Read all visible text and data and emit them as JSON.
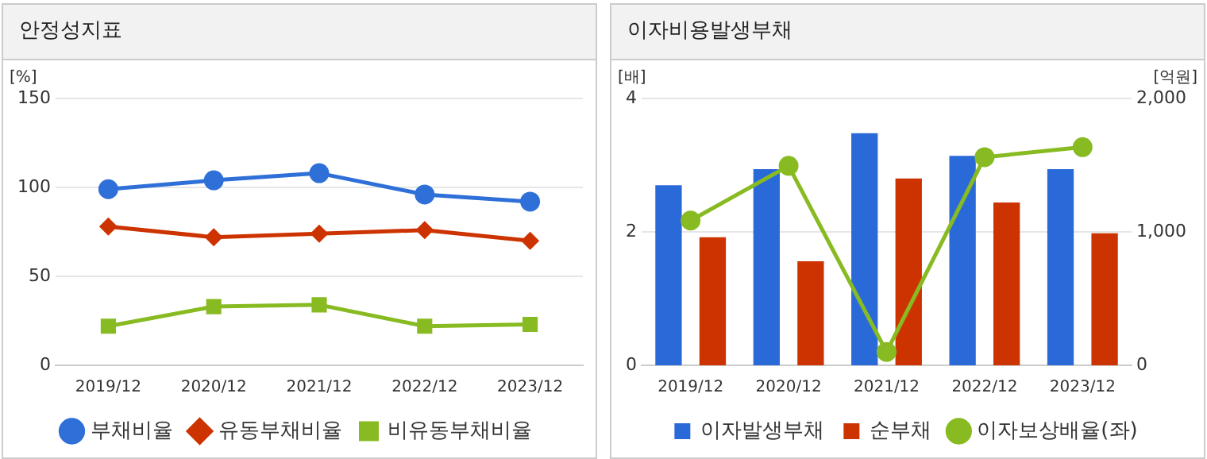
{
  "chart_data": [
    {
      "type": "line",
      "title": "안정성지표",
      "ylabel": "[%]",
      "categories": [
        "2019/12",
        "2020/12",
        "2021/12",
        "2022/12",
        "2023/12"
      ],
      "series": [
        {
          "name": "부채비율",
          "color": "#2f6fd8",
          "marker": "circle",
          "values": [
            99,
            104,
            108,
            96,
            92
          ]
        },
        {
          "name": "유동부채비율",
          "color": "#cc3300",
          "marker": "diamond",
          "values": [
            78,
            72,
            74,
            76,
            70
          ]
        },
        {
          "name": "비유동부채비율",
          "color": "#88bb22",
          "marker": "square",
          "values": [
            22,
            33,
            34,
            22,
            23
          ]
        }
      ],
      "ylim": [
        0,
        150
      ],
      "yticks": [
        0,
        50,
        100,
        150
      ],
      "grid": "y",
      "legend": "bottom"
    },
    {
      "type": "bar",
      "title": "이자비용발생부채",
      "ylabel": "[배]",
      "y2label": "[억원]",
      "categories": [
        "2019/12",
        "2020/12",
        "2021/12",
        "2022/12",
        "2023/12"
      ],
      "series": [
        {
          "name": "이자발생부채",
          "color": "#2a6ad8",
          "axis": "y2",
          "values": [
            1350,
            1470,
            1740,
            1570,
            1470
          ]
        },
        {
          "name": "순부채",
          "color": "#cc3300",
          "axis": "y2",
          "values": [
            960,
            780,
            1400,
            1220,
            990
          ]
        },
        {
          "name": "이자보상배율(좌)",
          "type": "line",
          "color": "#88bb22",
          "marker": "circle",
          "axis": "y",
          "values": [
            2.17,
            2.99,
            0.2,
            3.12,
            3.27
          ]
        }
      ],
      "ylim": [
        0,
        4
      ],
      "yticks": [
        0,
        2,
        4
      ],
      "y2lim": [
        0,
        2000
      ],
      "y2ticks": [
        {
          "value": 0,
          "label": "0"
        },
        {
          "value": 1000,
          "label": "1,000"
        },
        {
          "value": 2000,
          "label": "2,000"
        }
      ],
      "grid": "y",
      "legend": "bottom"
    }
  ]
}
